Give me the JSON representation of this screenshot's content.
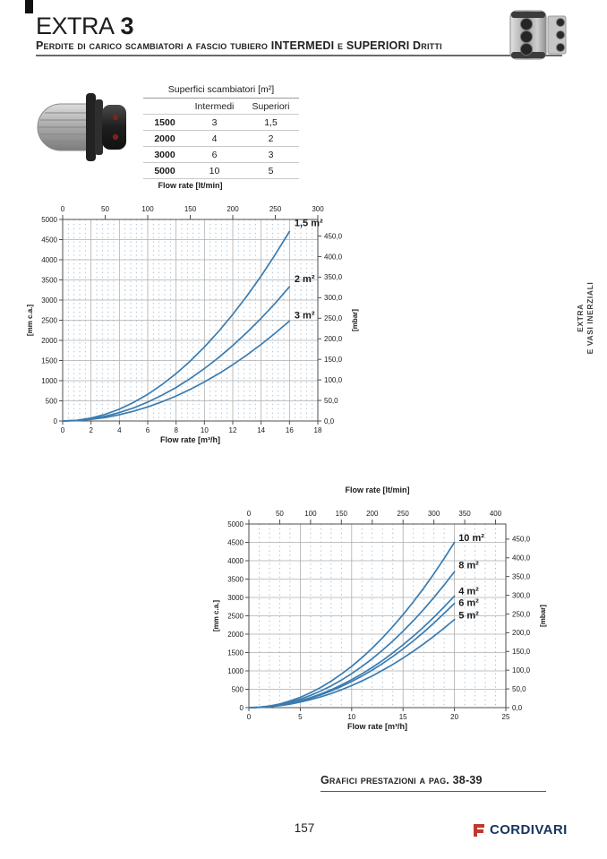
{
  "header": {
    "title": "EXTRA",
    "title_number": "3",
    "subtitle": "Perdite di carico scambiatori a fascio tubiero INTERMEDI e SUPERIORI Dritti"
  },
  "side_tab": {
    "line1": "EXTRA",
    "line2": "E VASI INERZIALI"
  },
  "surface_table": {
    "title": "Superfici scambiatori [m²]",
    "col_headers": [
      "Intermedi",
      "Superiori"
    ],
    "rows": [
      [
        "1500",
        "3",
        "1,5"
      ],
      [
        "2000",
        "4",
        "2"
      ],
      [
        "3000",
        "6",
        "3"
      ],
      [
        "5000",
        "10",
        "5"
      ]
    ]
  },
  "note": {
    "text": "Grafici prestazioni a pag. 38-39"
  },
  "footer": {
    "page_number": "157",
    "brand": "CORDIVARI"
  },
  "colors": {
    "curve": "#3b7cb0",
    "grid_major": "#aeaeae",
    "grid_minor": "#9db7cd",
    "axis": "#4f4f4f",
    "brand_navy": "#16355e",
    "brand_red": "#c0392b"
  },
  "chart_data": [
    {
      "id": "intermedi-superiori-small",
      "type": "line",
      "xlim": [
        0,
        18
      ],
      "ylim": [
        0,
        5000
      ],
      "minor_x_step": 0.4,
      "top_axis": {
        "title": "Flow rate [lt/min]",
        "ticks": [
          0,
          50,
          100,
          150,
          200,
          250,
          300
        ],
        "to_bottom_scale": 0.06
      },
      "bottom_axis": {
        "title": "Flow rate [m³/h]",
        "ticks": [
          0,
          2,
          4,
          6,
          8,
          10,
          12,
          14,
          16,
          18
        ]
      },
      "left_axis": {
        "title": "[mm c.a.]",
        "ticks": [
          0,
          500,
          1000,
          1500,
          2000,
          2500,
          3000,
          3500,
          4000,
          4500,
          5000
        ]
      },
      "right_axis": {
        "title": "[mbar]",
        "mm_per_unit": 10.197,
        "ticks": [
          {
            "v": 0,
            "label": "0,0"
          },
          {
            "v": 50,
            "label": "50,0"
          },
          {
            "v": 100,
            "label": "100,0"
          },
          {
            "v": 150,
            "label": "150,0"
          },
          {
            "v": 200,
            "label": "200,0"
          },
          {
            "v": 250,
            "label": "250,0"
          },
          {
            "v": 300,
            "label": "300,0"
          },
          {
            "v": 350,
            "label": "350,0"
          },
          {
            "v": 400,
            "label": "400,0"
          },
          {
            "v": 450,
            "label": "450,0"
          }
        ]
      },
      "series": [
        {
          "label": "1,5 m²",
          "label_at": [
            16.35,
            4830
          ],
          "x_start": 0,
          "x_step": 1,
          "y": [
            0,
            18,
            73,
            165,
            294,
            459,
            661,
            900,
            1175,
            1487,
            1836,
            2222,
            2644,
            3103,
            3598,
            4131,
            4700
          ]
        },
        {
          "label": "2 m²",
          "label_at": [
            16.35,
            3450
          ],
          "x_start": 0,
          "x_step": 1,
          "y": [
            0,
            13,
            52,
            117,
            208,
            325,
            468,
            637,
            832,
            1053,
            1300,
            1573,
            1872,
            2197,
            2548,
            2925,
            3330
          ]
        },
        {
          "label": "3 m²",
          "label_at": [
            16.35,
            2550
          ],
          "x_start": 0,
          "x_step": 1,
          "y": [
            0,
            10,
            39,
            87,
            155,
            242,
            349,
            475,
            620,
            785,
            969,
            1172,
            1395,
            1637,
            1899,
            2180,
            2480
          ]
        }
      ]
    },
    {
      "id": "intermedi-superiori-large",
      "type": "line",
      "xlim": [
        0,
        25
      ],
      "ylim": [
        0,
        5000
      ],
      "minor_x_step": 1,
      "top_axis": {
        "title": "Flow rate [lt/min]",
        "ticks": [
          0,
          50,
          100,
          150,
          200,
          250,
          300,
          350,
          400
        ],
        "to_bottom_scale": 0.06
      },
      "bottom_axis": {
        "title": "Flow rate [m³/h]",
        "ticks": [
          0,
          5,
          10,
          15,
          20,
          25
        ]
      },
      "left_axis": {
        "title": "[mm c.a.]",
        "ticks": [
          0,
          500,
          1000,
          1500,
          2000,
          2500,
          3000,
          3500,
          4000,
          4500,
          5000
        ]
      },
      "right_axis": {
        "title": "[mbar]",
        "mm_per_unit": 10.197,
        "ticks": [
          {
            "v": 0,
            "label": "0,0"
          },
          {
            "v": 50,
            "label": "50,0"
          },
          {
            "v": 100,
            "label": "100,0"
          },
          {
            "v": 150,
            "label": "150,0"
          },
          {
            "v": 200,
            "label": "200,0"
          },
          {
            "v": 250,
            "label": "250,0"
          },
          {
            "v": 300,
            "label": "300,0"
          },
          {
            "v": 350,
            "label": "350,0"
          },
          {
            "v": 400,
            "label": "400,0"
          },
          {
            "v": 450,
            "label": "450,0"
          }
        ]
      },
      "series": [
        {
          "label": "10 m²",
          "label_at": [
            20.4,
            4540
          ],
          "x_start": 0,
          "x_step": 1,
          "y": [
            0,
            11,
            45,
            101,
            180,
            281,
            405,
            551,
            720,
            911,
            1125,
            1361,
            1620,
            1901,
            2205,
            2531,
            2880,
            3251,
            3645,
            4061,
            4500
          ]
        },
        {
          "label": "8 m²",
          "label_at": [
            20.4,
            3790
          ],
          "x_start": 0,
          "x_step": 1,
          "y": [
            0,
            9,
            37,
            83,
            148,
            231,
            333,
            453,
            592,
            749,
            925,
            1119,
            1332,
            1563,
            1813,
            2081,
            2368,
            2673,
            2997,
            3339,
            3700
          ]
        },
        {
          "label": "4 m²",
          "label_at": [
            20.4,
            3080
          ],
          "x_start": 0,
          "x_step": 1,
          "y": [
            0,
            8,
            30,
            68,
            122,
            190,
            274,
            372,
            486,
            616,
            760,
            920,
            1094,
            1284,
            1490,
            1710,
            1946,
            2196,
            2462,
            2744,
            3040
          ]
        },
        {
          "label": "6 m²",
          "label_at": [
            20.4,
            2770
          ],
          "x_start": 0,
          "x_step": 1,
          "y": [
            0,
            7,
            28,
            64,
            114,
            178,
            256,
            348,
            454,
            575,
            710,
            859,
            1022,
            1200,
            1392,
            1598,
            1818,
            2053,
            2302,
            2565,
            2840
          ]
        },
        {
          "label": "5 m²",
          "label_at": [
            20.4,
            2430
          ],
          "x_start": 0,
          "x_step": 1,
          "y": [
            0,
            6,
            24,
            54,
            96,
            150,
            216,
            294,
            384,
            486,
            600,
            726,
            864,
            1014,
            1176,
            1350,
            1536,
            1734,
            1944,
            2166,
            2400
          ]
        }
      ]
    }
  ]
}
